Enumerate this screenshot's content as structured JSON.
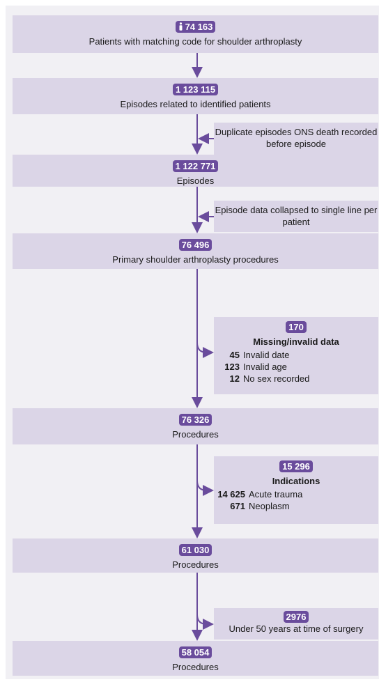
{
  "nodes": [
    {
      "count": "74 163",
      "label": "Patients with matching code for shoulder arthroplasty"
    },
    {
      "count": "1 123 115",
      "label": "Episodes related to identified patients"
    },
    {
      "count": "1 122 771",
      "label": "Episodes"
    },
    {
      "count": "76 496",
      "label": "Primary shoulder arthroplasty procedures"
    },
    {
      "count": "76 326",
      "label": "Procedures"
    },
    {
      "count": "61 030",
      "label": "Procedures"
    },
    {
      "count": "58 054",
      "label": "Procedures"
    }
  ],
  "exclusions": [
    {
      "label": "Duplicate episodes ONS death recorded before episode"
    },
    {
      "label": "Episode data collapsed to single line per patient"
    },
    {
      "count": "170",
      "title": "Missing/invalid data",
      "items": [
        {
          "count": "45",
          "label": "Invalid date"
        },
        {
          "count": "123",
          "label": "Invalid age"
        },
        {
          "count": "12",
          "label": "No sex recorded"
        }
      ]
    },
    {
      "count": "15 296",
      "title": "Indications",
      "items": [
        {
          "count": "14 625",
          "label": "Acute trauma"
        },
        {
          "count": "671",
          "label": "Neoplasm"
        }
      ]
    },
    {
      "count": "2976",
      "label": "Under 50 years at time of surgery"
    }
  ]
}
